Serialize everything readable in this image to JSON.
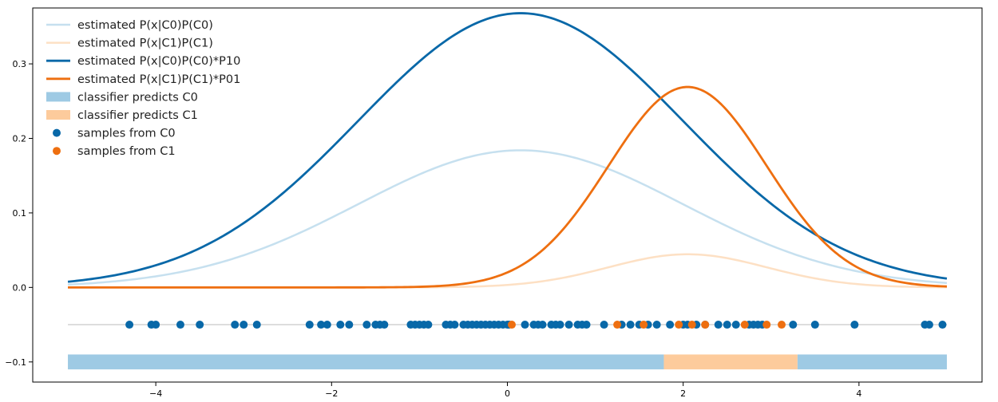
{
  "chart_data": {
    "type": "line",
    "title": "",
    "xlabel": "",
    "ylabel": "",
    "xlim": [
      -5.4,
      5.4
    ],
    "ylim": [
      -0.127,
      0.375
    ],
    "grid": false,
    "legend_position": "top-left",
    "x_ticks": [
      -4,
      -2,
      0,
      2,
      4
    ],
    "x_tick_labels": [
      "−4",
      "−2",
      "0",
      "2",
      "4"
    ],
    "y_ticks": [
      -0.1,
      0.0,
      0.1,
      0.2,
      0.3
    ],
    "y_tick_labels": [
      "−0.1",
      "0.0",
      "0.1",
      "0.2",
      "0.3"
    ],
    "curve_x_range": [
      -5,
      5
    ],
    "series": [
      {
        "name": "estimated P(x|C0)P(C0)",
        "kind": "gaussian",
        "mean": 0.15,
        "sd": 1.85,
        "peak": 0.184,
        "color": "#c6e0ef",
        "width": 2.5
      },
      {
        "name": "estimated P(x|C1)P(C1)",
        "kind": "gaussian",
        "mean": 2.05,
        "sd": 0.9,
        "peak": 0.0445,
        "color": "#fde0c4",
        "width": 2.5
      },
      {
        "name": "estimated P(x|C0)P(C0)*P10",
        "kind": "gaussian",
        "mean": 0.15,
        "sd": 1.85,
        "peak": 0.368,
        "color": "#0868a8",
        "width": 2.8
      },
      {
        "name": "estimated P(x|C1)P(C1)*P01",
        "kind": "gaussian",
        "mean": 2.05,
        "sd": 0.9,
        "peak": 0.269,
        "color": "#ee6f10",
        "width": 2.8
      }
    ],
    "regions": [
      {
        "name": "classifier predicts C0",
        "color": "#9ecae4",
        "y_range": [
          -0.11,
          -0.09
        ],
        "x_ranges": [
          [
            -5,
            1.78
          ],
          [
            3.3,
            5
          ]
        ]
      },
      {
        "name": "classifier predicts C1",
        "color": "#fdcb9c",
        "y_range": [
          -0.11,
          -0.09
        ],
        "x_ranges": [
          [
            1.78,
            3.3
          ]
        ]
      }
    ],
    "sample_baseline": {
      "y": -0.05,
      "x_range": [
        -5,
        5
      ],
      "color": "#bbbbbb"
    },
    "samples": [
      {
        "name": "samples from C0",
        "color": "#0868a8",
        "y": -0.05,
        "x": [
          -4.3,
          -4.05,
          -4.0,
          -3.72,
          -3.5,
          -3.1,
          -3.0,
          -2.85,
          -2.25,
          -2.12,
          -2.05,
          -1.9,
          -1.8,
          -1.6,
          -1.5,
          -1.45,
          -1.4,
          -1.1,
          -1.05,
          -1.0,
          -0.95,
          -0.9,
          -0.7,
          -0.65,
          -0.6,
          -0.5,
          -0.45,
          -0.4,
          -0.35,
          -0.3,
          -0.25,
          -0.2,
          -0.15,
          -0.1,
          -0.05,
          0.0,
          0.02,
          0.2,
          0.3,
          0.35,
          0.4,
          0.5,
          0.55,
          0.6,
          0.7,
          0.8,
          0.85,
          0.9,
          1.1,
          1.3,
          1.4,
          1.5,
          1.6,
          1.7,
          1.85,
          2.0,
          2.05,
          2.15,
          2.25,
          2.4,
          2.5,
          2.6,
          2.75,
          2.8,
          2.85,
          2.9,
          3.25,
          3.5,
          3.95,
          4.75,
          4.8,
          4.95
        ]
      },
      {
        "name": "samples from C1",
        "color": "#ee6f10",
        "y": -0.05,
        "x": [
          0.05,
          1.25,
          1.55,
          1.95,
          2.1,
          2.25,
          2.7,
          2.95,
          3.12
        ]
      }
    ]
  }
}
